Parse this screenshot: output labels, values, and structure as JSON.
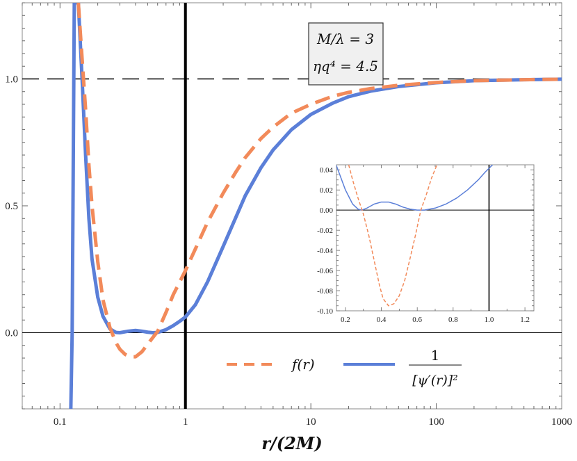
{
  "chart_data": {
    "type": "line",
    "xlabel": "r/(2M)",
    "ylabel": "",
    "x_scale": "log",
    "xlim": [
      0.05,
      1000
    ],
    "ylim": [
      -0.3,
      1.3
    ],
    "x_ticks": [
      {
        "v": 0.1,
        "label": "0.1"
      },
      {
        "v": 1,
        "label": "1"
      },
      {
        "v": 10,
        "label": "10"
      },
      {
        "v": 100,
        "label": "100"
      },
      {
        "v": 1000,
        "label": "1000"
      }
    ],
    "y_ticks": [
      {
        "v": 0.0,
        "label": "0.0"
      },
      {
        "v": 0.5,
        "label": "0.5"
      },
      {
        "v": 1.0,
        "label": "1.0"
      }
    ],
    "reference_lines": {
      "horizontal": [
        0,
        1
      ],
      "vertical": [
        1
      ]
    },
    "parameters_box": {
      "line1": "M/λ = 3",
      "line2": "ηq⁴ = 4.5"
    },
    "legend": {
      "placement": "bottom-right",
      "items": [
        {
          "series": "f",
          "label": "f(r)"
        },
        {
          "series": "inv",
          "label_numerator": "1",
          "label_denominator": "[ψ′(r)]²"
        }
      ]
    },
    "series": [
      {
        "id": "f",
        "style": "dashed",
        "color": "#F28A5A",
        "x": [
          0.14,
          0.15,
          0.16,
          0.17,
          0.18,
          0.2,
          0.22,
          0.25,
          0.28,
          0.3,
          0.33,
          0.36,
          0.4,
          0.45,
          0.5,
          0.6,
          0.7,
          0.8,
          0.9,
          1.0,
          1.2,
          1.5,
          2.0,
          2.5,
          3,
          4,
          5,
          7,
          10,
          15,
          20,
          30,
          50,
          100,
          200,
          500,
          1000
        ],
        "y": [
          1.3,
          1.08,
          0.88,
          0.66,
          0.5,
          0.28,
          0.13,
          0.02,
          -0.04,
          -0.065,
          -0.085,
          -0.095,
          -0.095,
          -0.075,
          -0.045,
          0.005,
          0.08,
          0.15,
          0.2,
          0.245,
          0.33,
          0.435,
          0.55,
          0.63,
          0.69,
          0.765,
          0.81,
          0.865,
          0.9,
          0.932,
          0.947,
          0.962,
          0.975,
          0.986,
          0.993,
          0.997,
          0.999
        ]
      },
      {
        "id": "inv",
        "style": "solid",
        "color": "#5B7FD8",
        "x": [
          0.122,
          0.125,
          0.13,
          0.14,
          0.15,
          0.16,
          0.17,
          0.18,
          0.2,
          0.22,
          0.25,
          0.28,
          0.3,
          0.35,
          0.4,
          0.45,
          0.5,
          0.55,
          0.6,
          0.7,
          0.8,
          0.9,
          1.0,
          1.2,
          1.5,
          2.0,
          2.5,
          3,
          4,
          5,
          7,
          10,
          15,
          20,
          30,
          50,
          100,
          200,
          500,
          1000
        ],
        "y": [
          -0.3,
          0.0,
          1.3,
          1.3,
          1.0,
          0.7,
          0.45,
          0.29,
          0.14,
          0.065,
          0.015,
          0.001,
          0.0,
          0.006,
          0.009,
          0.006,
          0.002,
          0.0,
          0.001,
          0.012,
          0.028,
          0.045,
          0.062,
          0.11,
          0.2,
          0.34,
          0.45,
          0.54,
          0.65,
          0.72,
          0.8,
          0.86,
          0.905,
          0.93,
          0.952,
          0.97,
          0.985,
          0.993,
          0.997,
          0.999
        ]
      }
    ],
    "inset": {
      "type": "line",
      "xlim": [
        0.15,
        1.25
      ],
      "ylim": [
        -0.1,
        0.045
      ],
      "x_ticks": [
        {
          "v": 0.2,
          "label": "0.2"
        },
        {
          "v": 0.4,
          "label": "0.4"
        },
        {
          "v": 0.6,
          "label": "0.6"
        },
        {
          "v": 0.8,
          "label": "0.8"
        },
        {
          "v": 1.0,
          "label": "1.0"
        },
        {
          "v": 1.2,
          "label": "1.2"
        }
      ],
      "y_ticks": [
        {
          "v": 0.04,
          "label": "0.04"
        },
        {
          "v": 0.02,
          "label": "0.02"
        },
        {
          "v": 0.0,
          "label": "0.00"
        },
        {
          "v": -0.02,
          "label": "-0.02"
        },
        {
          "v": -0.04,
          "label": "-0.04"
        },
        {
          "v": -0.06,
          "label": "-0.06"
        },
        {
          "v": -0.08,
          "label": "-0.08"
        },
        {
          "v": -0.1,
          "label": "-0.10"
        }
      ],
      "reference_lines": {
        "horizontal": [
          0
        ],
        "vertical": [
          1
        ]
      },
      "series": [
        {
          "id": "f",
          "style": "dashed",
          "color": "#F28A5A",
          "x": [
            0.218,
            0.24,
            0.27,
            0.3,
            0.33,
            0.36,
            0.39,
            0.41,
            0.44,
            0.47,
            0.5,
            0.53,
            0.56,
            0.59,
            0.62,
            0.65,
            0.68,
            0.71
          ],
          "y": [
            0.045,
            0.03,
            0.012,
            -0.004,
            -0.025,
            -0.05,
            -0.075,
            -0.088,
            -0.095,
            -0.093,
            -0.085,
            -0.07,
            -0.048,
            -0.025,
            0.0,
            0.015,
            0.032,
            0.045
          ]
        },
        {
          "id": "inv",
          "style": "solid",
          "color": "#5B7FD8",
          "x": [
            0.148,
            0.2,
            0.24,
            0.27,
            0.29,
            0.32,
            0.36,
            0.4,
            0.44,
            0.48,
            0.52,
            0.56,
            0.6,
            0.64,
            0.7,
            0.76,
            0.82,
            0.88,
            0.94,
            0.98,
            1.02
          ],
          "y": [
            0.045,
            0.02,
            0.006,
            0.001,
            0.0,
            0.002,
            0.006,
            0.008,
            0.008,
            0.006,
            0.003,
            0.001,
            0.0,
            0.0,
            0.002,
            0.006,
            0.012,
            0.02,
            0.03,
            0.038,
            0.045
          ]
        }
      ]
    }
  }
}
